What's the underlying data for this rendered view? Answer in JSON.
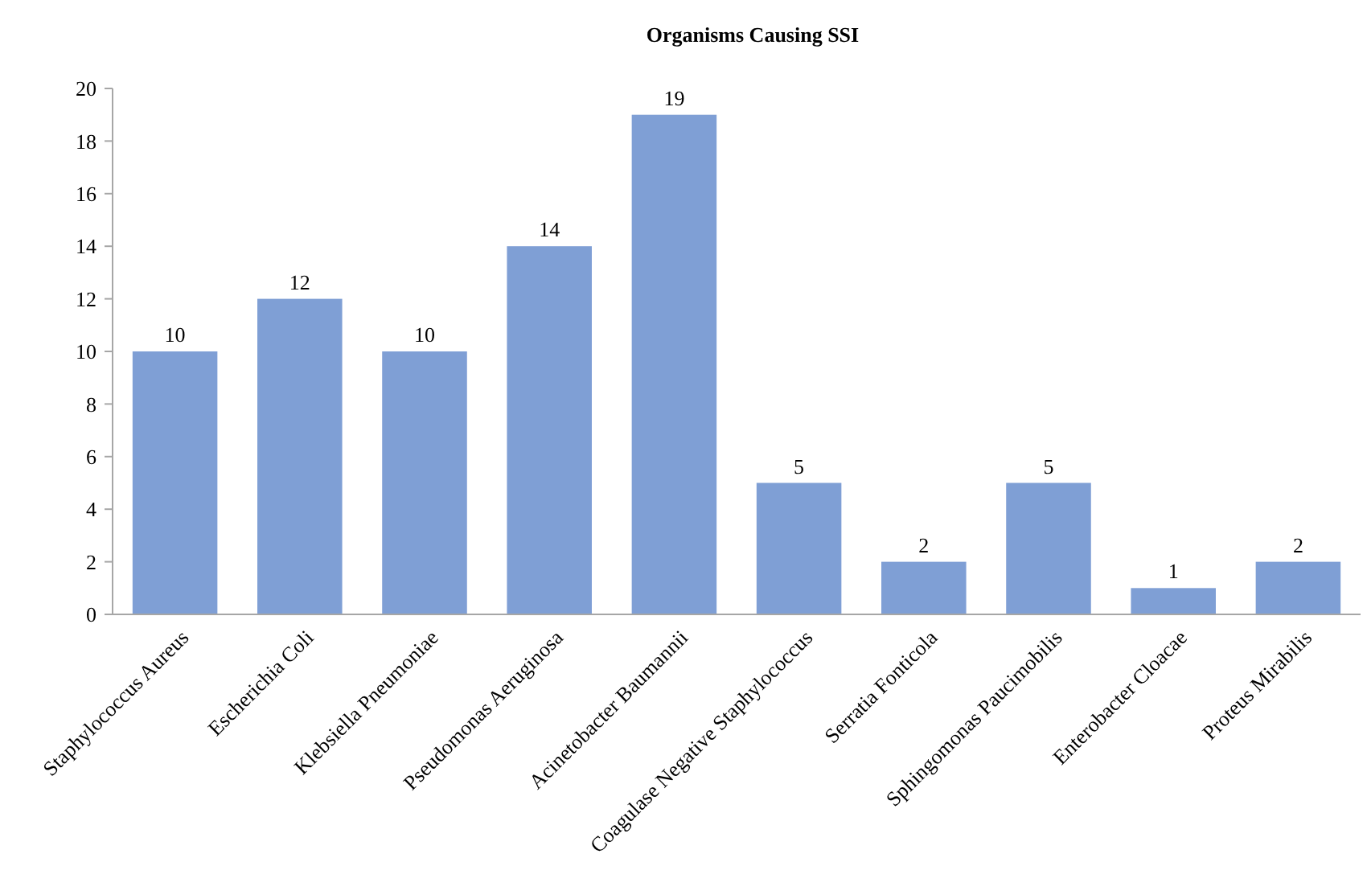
{
  "chart_data": {
    "type": "bar",
    "title": "Organisms Causing SSI",
    "categories": [
      "Staphylococcus Aureus",
      "Escherichia Coli",
      "Klebsiella Pneumoniae",
      "Pseudomonas Aeruginosa",
      "Acinetobacter Baumannii",
      "Coagulase Negative Staphylococcus",
      "Serratia Fonticola",
      "Sphingomonas Paucimobilis",
      "Enterobacter Cloacae",
      "Proteus Mirabilis"
    ],
    "values": [
      10,
      12,
      10,
      14,
      19,
      5,
      2,
      5,
      1,
      2
    ],
    "color": "#7f9fd5",
    "ylim": [
      0,
      20
    ],
    "yticks": [
      0,
      2,
      4,
      6,
      8,
      10,
      12,
      14,
      16,
      18,
      20
    ],
    "grid": false,
    "data_labels": true
  }
}
